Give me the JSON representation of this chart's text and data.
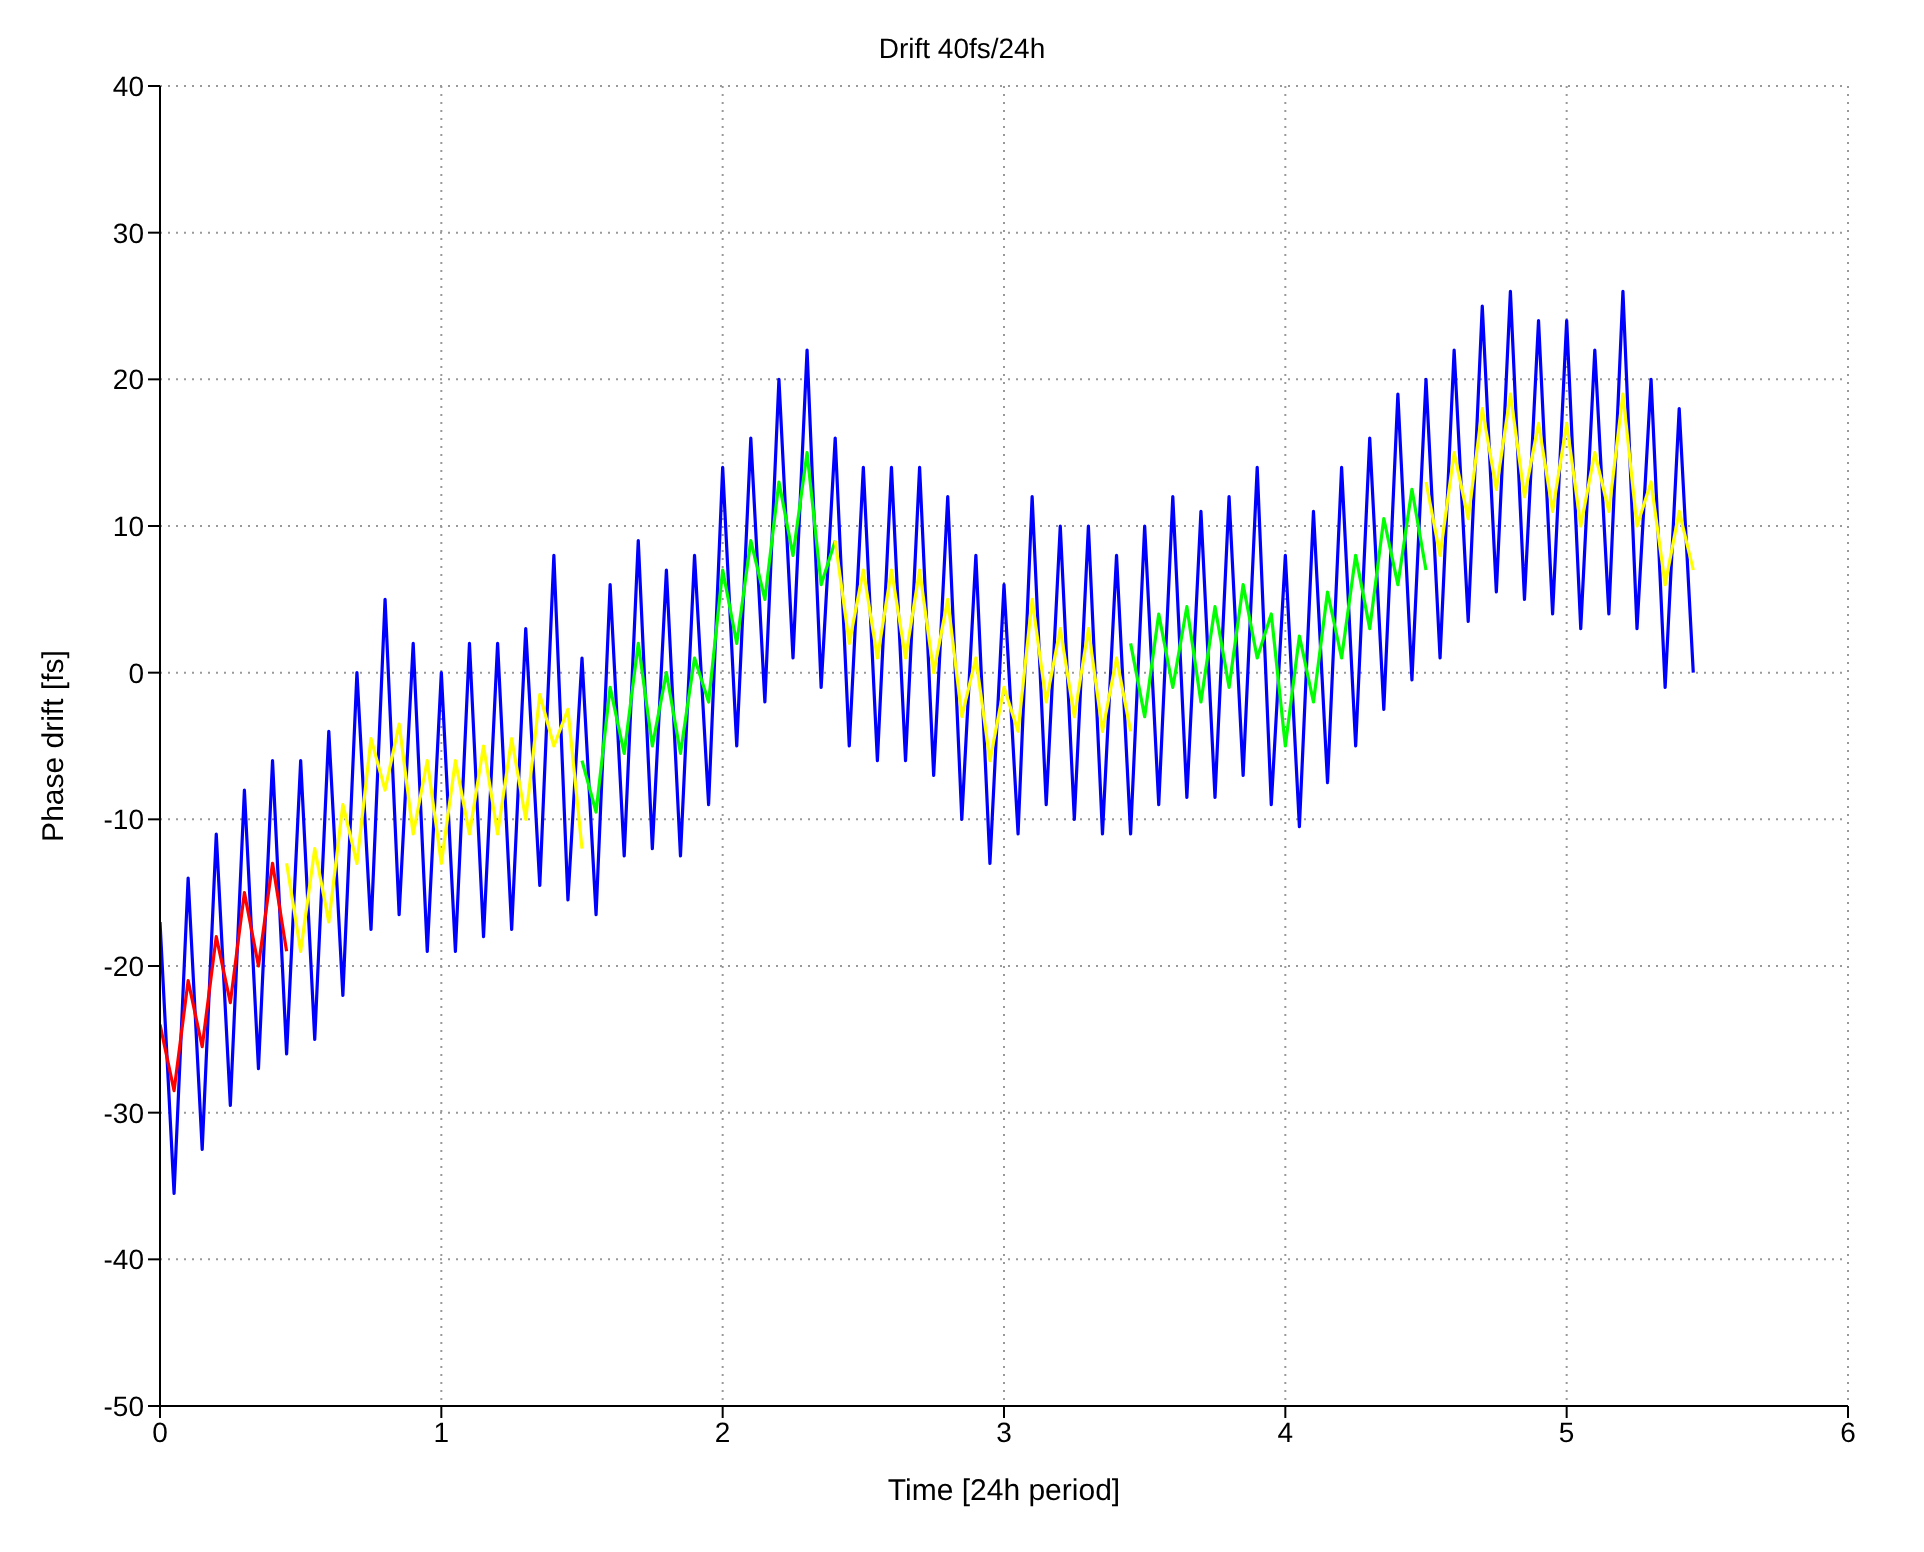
{
  "chart_data": {
    "type": "line",
    "title": "Drift 40fs/24h",
    "xlabel": "Time [24h period]",
    "ylabel": "Phase drift [fs]",
    "xlim": [
      0,
      6
    ],
    "xticks": [
      0,
      1,
      2,
      3,
      4,
      5,
      6
    ],
    "ylim": [
      -50,
      40
    ],
    "yticks": [
      -50,
      -40,
      -30,
      -20,
      -10,
      0,
      10,
      20,
      30,
      40
    ],
    "grid": true,
    "line_style": "solid",
    "marker": "none",
    "series": [
      {
        "color": "#0000ff",
        "x": [
          0,
          0.05,
          0.1,
          0.15,
          0.2,
          0.25,
          0.3,
          0.35,
          0.4,
          0.45,
          0.5,
          0.55,
          0.6,
          0.65,
          0.7,
          0.75,
          0.8,
          0.85,
          0.9,
          0.95,
          1.0,
          1.05,
          1.1,
          1.15,
          1.2,
          1.25,
          1.3,
          1.35,
          1.4,
          1.45,
          1.5,
          1.55,
          1.6,
          1.65,
          1.7,
          1.75,
          1.8,
          1.85,
          1.9,
          1.95,
          2.0,
          2.05,
          2.1,
          2.15,
          2.2,
          2.25,
          2.3,
          2.35,
          2.4,
          2.45,
          2.5,
          2.55,
          2.6,
          2.65,
          2.7,
          2.75,
          2.8,
          2.85,
          2.9,
          2.95,
          3.0,
          3.05,
          3.1,
          3.15,
          3.2,
          3.25,
          3.3,
          3.35,
          3.4,
          3.45,
          3.5,
          3.55,
          3.6,
          3.65,
          3.7,
          3.75,
          3.8,
          3.85,
          3.9,
          3.95,
          4.0,
          4.05,
          4.1,
          4.15,
          4.2,
          4.25,
          4.3,
          4.35,
          4.4,
          4.45,
          4.5,
          4.55,
          4.6,
          4.65,
          4.7,
          4.75,
          4.8,
          4.85,
          4.9,
          4.95,
          5.0,
          5.05,
          5.1,
          5.15,
          5.2,
          5.25,
          5.3,
          5.35,
          5.4,
          5.45
        ],
        "values": [
          -17,
          -35.5,
          -14,
          -32.5,
          -11,
          -29.5,
          -8,
          -27,
          -6,
          -26,
          -6,
          -25,
          -4,
          -22,
          0,
          -17.5,
          5,
          -16.5,
          2,
          -19,
          0,
          -19,
          2,
          -18,
          2,
          -17.5,
          3,
          -14.5,
          8,
          -15.5,
          1,
          -16.5,
          6,
          -12.5,
          9,
          -12,
          7,
          -12.5,
          8,
          -9,
          14,
          -5,
          16,
          -2,
          20,
          1,
          22,
          -1,
          16,
          -5,
          14,
          -6,
          14,
          -6,
          14,
          -7,
          12,
          -10,
          8,
          -13,
          6,
          -11,
          12,
          -9,
          10,
          -10,
          10,
          -11,
          8,
          -11,
          10,
          -9,
          12,
          -8.5,
          11,
          -8.5,
          12,
          -7,
          14,
          -9,
          8,
          -10.5,
          11,
          -7.5,
          14,
          -5,
          16,
          -2.5,
          19,
          -0.5,
          20,
          1,
          22,
          3.5,
          25,
          5.5,
          26,
          5,
          24,
          4,
          24,
          3,
          22,
          4,
          26,
          3,
          20,
          -1,
          18,
          0
        ]
      },
      {
        "color": "#ff0000",
        "x": [
          0,
          0.05,
          0.1,
          0.15,
          0.2,
          0.25,
          0.3,
          0.35,
          0.4,
          0.45
        ],
        "values": [
          -24,
          -28.5,
          -21,
          -25.5,
          -18,
          -22.5,
          -15,
          -20,
          -13,
          -19
        ]
      },
      {
        "color": "#ffff00",
        "x": [
          0.45,
          0.5,
          0.55,
          0.6,
          0.65,
          0.7,
          0.75,
          0.8,
          0.85,
          0.9,
          0.95,
          1.0,
          1.05,
          1.1,
          1.15,
          1.2,
          1.25,
          1.3,
          1.35,
          1.4,
          1.45,
          1.5
        ],
        "values": [
          -13,
          -19,
          -12,
          -17,
          -9,
          -13,
          -4.5,
          -8,
          -3.5,
          -11,
          -6,
          -13,
          -6,
          -11,
          -5,
          -11,
          -4.5,
          -10,
          -1.5,
          -5,
          -2.5,
          -12
        ]
      },
      {
        "color": "#00ff00",
        "x": [
          1.5,
          1.55,
          1.6,
          1.65,
          1.7,
          1.75,
          1.8,
          1.85,
          1.9,
          1.95,
          2.0,
          2.05,
          2.1,
          2.15,
          2.2,
          2.25,
          2.3,
          2.35,
          2.4
        ],
        "values": [
          -6,
          -9.5,
          -1,
          -5.5,
          2,
          -5,
          0,
          -5.5,
          1,
          -2,
          7,
          2,
          9,
          5,
          13,
          8,
          15,
          6,
          9
        ]
      },
      {
        "color": "#ffff00",
        "x": [
          2.4,
          2.45,
          2.5,
          2.55,
          2.6,
          2.65,
          2.7,
          2.75,
          2.8,
          2.85,
          2.9,
          2.95,
          3.0,
          3.05,
          3.1,
          3.15,
          3.2,
          3.25,
          3.3,
          3.35,
          3.4,
          3.45
        ],
        "values": [
          9,
          2,
          7,
          1,
          7,
          1,
          7,
          0,
          5,
          -3,
          1,
          -6,
          -1,
          -4,
          5,
          -2,
          3,
          -3,
          3,
          -4,
          1,
          -4
        ]
      },
      {
        "color": "#00ff00",
        "x": [
          3.45,
          3.5,
          3.55,
          3.6,
          3.65,
          3.7,
          3.75,
          3.8,
          3.85,
          3.9,
          3.95,
          4.0,
          4.05,
          4.1,
          4.15,
          4.2,
          4.25,
          4.3,
          4.35,
          4.4,
          4.45,
          4.5
        ],
        "values": [
          2,
          -3,
          4,
          -1,
          4.5,
          -2,
          4.5,
          -1,
          6,
          1,
          4,
          -5,
          2.5,
          -2,
          5.5,
          1,
          8,
          3,
          10.5,
          6,
          12.5,
          7
        ]
      },
      {
        "color": "#ffff00",
        "x": [
          4.5,
          4.55,
          4.6,
          4.65,
          4.7,
          4.75,
          4.8,
          4.85,
          4.9,
          4.95,
          5.0,
          5.05,
          5.1,
          5.15,
          5.2,
          5.25,
          5.3,
          5.35,
          5.4,
          5.45
        ],
        "values": [
          13,
          8,
          15,
          10.5,
          18,
          12.5,
          19,
          12,
          17,
          11,
          17,
          10,
          15,
          11,
          19,
          10,
          13,
          6,
          11,
          7
        ]
      }
    ]
  }
}
